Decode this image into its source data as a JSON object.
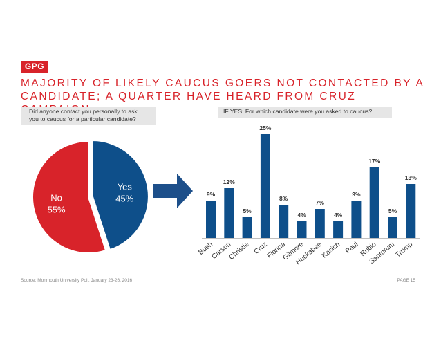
{
  "logo": "GPG",
  "title_line1": "MAJORITY OF LIKELY CAUCUS GOERS NOT CONTACTED BY A",
  "title_line2": "CANDIDATE; A QUARTER HAVE HEARD FROM CRUZ CAMPAIGN",
  "pie_question_line1": "Did anyone contact you personally to ask",
  "pie_question_line2": "you to caucus for a particular candidate?",
  "bar_question": "IF YES: For which candidate were you asked to caucus?",
  "source": "Source: Monmouth University Poll, January 23-26, 2016",
  "page_label": "PAGE 15",
  "colors": {
    "red": "#d8232a",
    "blue": "#0e4f8a",
    "arrow": "#1d4f8a"
  },
  "chart_data": [
    {
      "type": "pie",
      "slices": [
        {
          "label": "Yes",
          "value": 45,
          "value_label": "45%",
          "color": "#0e4f8a"
        },
        {
          "label": "No",
          "value": 55,
          "value_label": "55%",
          "color": "#d8232a"
        }
      ]
    },
    {
      "type": "bar",
      "categories": [
        "Bush",
        "Carson",
        "Christie",
        "Cruz",
        "Fiorina",
        "Gilmore",
        "Huckabee",
        "Kasich",
        "Paul",
        "Rubio",
        "Santorum",
        "Trump"
      ],
      "values": [
        9,
        12,
        5,
        25,
        8,
        4,
        7,
        4,
        9,
        17,
        5,
        13
      ],
      "value_labels": [
        "9%",
        "12%",
        "5%",
        "25%",
        "8%",
        "4%",
        "7%",
        "4%",
        "9%",
        "17%",
        "5%",
        "13%"
      ],
      "color": "#0e4f8a",
      "ylim": [
        0,
        25
      ]
    }
  ]
}
